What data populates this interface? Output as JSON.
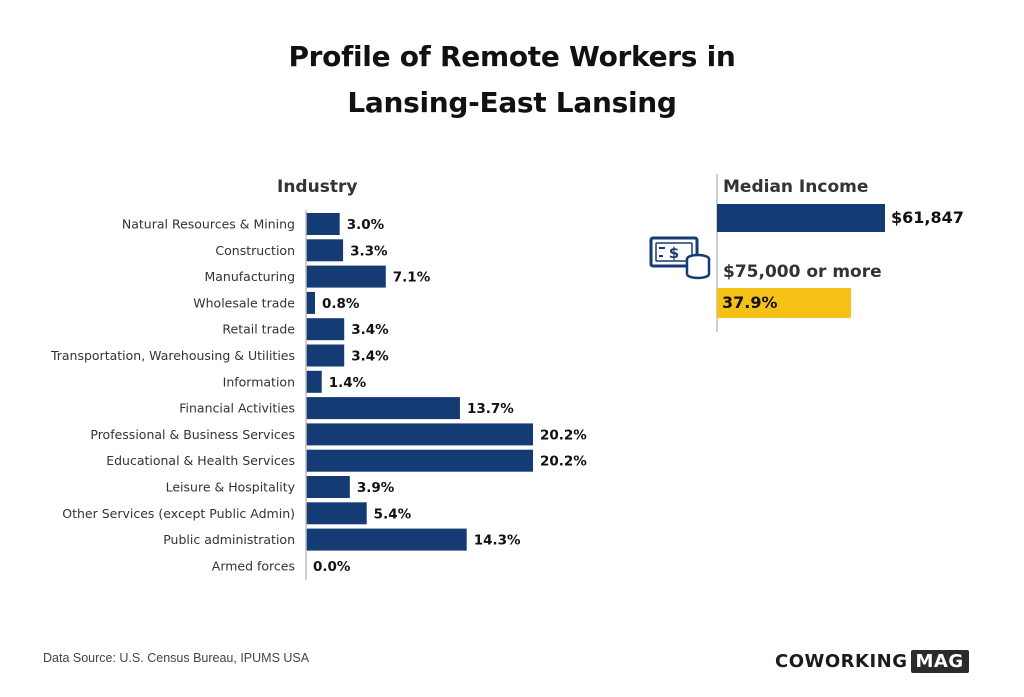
{
  "title_line1": "Profile of Remote Workers in",
  "title_line2": "Lansing-East Lansing",
  "chart_data": {
    "type": "bar",
    "orientation": "horizontal",
    "title": "Industry",
    "categories": [
      "Natural Resources & Mining",
      "Construction",
      "Manufacturing",
      "Wholesale trade",
      "Retail trade",
      "Transportation, Warehousing & Utilities",
      "Information",
      "Financial Activities",
      "Professional & Business Services",
      "Educational & Health Services",
      "Leisure & Hospitality",
      "Other Services (except Public Admin)",
      "Public administration",
      "Armed forces"
    ],
    "values": [
      3.0,
      3.3,
      7.1,
      0.8,
      3.4,
      3.4,
      1.4,
      13.7,
      20.2,
      20.2,
      3.9,
      5.4,
      14.3,
      0.0
    ],
    "value_labels": [
      "3.0%",
      "3.3%",
      "7.1%",
      "0.8%",
      "3.4%",
      "3.4%",
      "1.4%",
      "13.7%",
      "20.2%",
      "20.2%",
      "3.9%",
      "5.4%",
      "14.3%",
      "0.0%"
    ],
    "xlim": [
      0,
      20.2
    ],
    "grid": false,
    "bar_color": "#143b73"
  },
  "income": {
    "median_label": "Median Income",
    "median_value": "$61,847",
    "median_color": "#143b73",
    "share_label": "$75,000 or more",
    "share_value": "37.9%",
    "share_color": "#f5c116",
    "icon": "money-cash-coins-icon"
  },
  "footer": {
    "source": "Data Source: U.S. Census Bureau, IPUMS USA",
    "brand_part1": "COWORKING",
    "brand_part2": "MAG"
  }
}
